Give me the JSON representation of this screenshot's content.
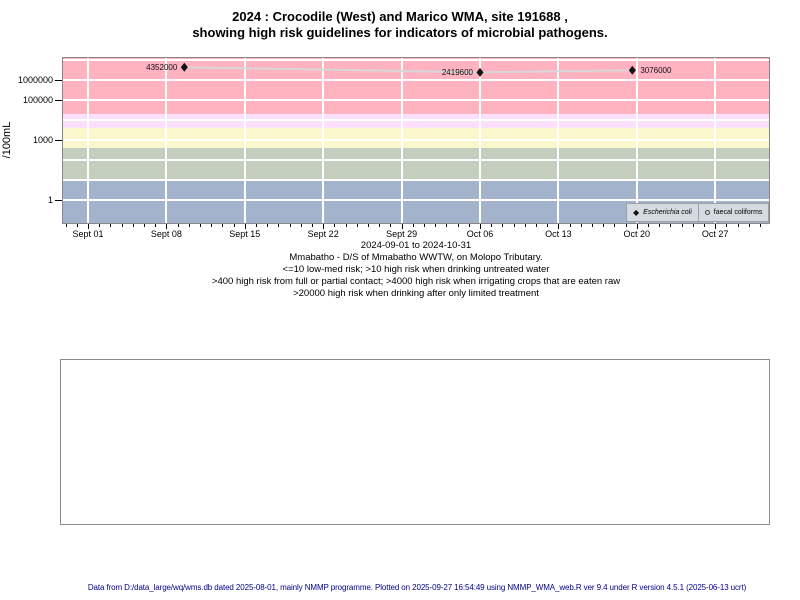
{
  "title": {
    "line1": "2024 : Crocodile (West) and Marico WMA, site 191688 ,",
    "line2": "showing high risk guidelines for indicators of microbial pathogens."
  },
  "chart_data": {
    "type": "scatter",
    "ylabel": "/100mL",
    "y_scale": "log10",
    "y_ticks": [
      1,
      1000,
      100000,
      1000000
    ],
    "y_tick_labels": [
      "1",
      "1000",
      "100000",
      "1000000"
    ],
    "y_gridline_decades": [
      0,
      1,
      2,
      3,
      4,
      5,
      6,
      7
    ],
    "x_tick_labels": [
      "Sept 01",
      "Sept 08",
      "Sept 15",
      "Sept 22",
      "Sept 29",
      "Oct 06",
      "Oct 13",
      "Oct 20",
      "Oct 27"
    ],
    "x_range_label": "2024-09-01 to 2024-10-31",
    "x_range": [
      "2024-09-01",
      "2024-10-31"
    ],
    "bands": [
      {
        "name": "low-med-risk",
        "from": null,
        "to": 10,
        "color": "#a3b3cc"
      },
      {
        "name": "high-risk-drinking-untreated",
        "from": 10,
        "to": 400,
        "color": "#c3cebf"
      },
      {
        "name": "high-risk-full-partial-contact",
        "from": 400,
        "to": 4000,
        "color": "#faf7cd"
      },
      {
        "name": "high-risk-irrigating-raw-crops",
        "from": 4000,
        "to": 20000,
        "color": "#fae0fa"
      },
      {
        "name": "high-risk-limited-treatment-drinking",
        "from": 20000,
        "to": null,
        "color": "#ffb2c0"
      }
    ],
    "series": [
      {
        "name": "Escherichia coli",
        "marker": "diamond-filled",
        "line_color": "#d7d7d7",
        "points": [
          {
            "date_approx": "2024-09-10",
            "day": 8.6,
            "value": 4352000,
            "label": "4352000",
            "label_side": "left"
          },
          {
            "date_approx": "2024-10-06",
            "day": 35.0,
            "value": 2419600,
            "label": "2419600",
            "label_side": "left"
          },
          {
            "date_approx": "2024-10-19",
            "day": 48.6,
            "value": 3076000,
            "label": "3076000",
            "label_side": "right"
          }
        ]
      },
      {
        "name": "faecal coliforms",
        "marker": "circle-open",
        "points": []
      }
    ],
    "legend": [
      {
        "label": "Escherichia coli",
        "marker": "diamond-filled"
      },
      {
        "label": "faecal coliforms",
        "marker": "circle-open"
      }
    ],
    "colors": {
      "gridline": "#ffffff",
      "plot_border": "#878787",
      "axis_tick": "#000000",
      "point": "#111111"
    }
  },
  "captions": {
    "lines": [
      "Mmabatho - D/S of Mmabatho WWTW, on Molopo Tributary.",
      "<=10 low-med risk; >10 high risk when drinking untreated water",
      ">400 high risk from full or partial contact; >4000 high risk when irrigating crops that are eaten raw",
      ">20000 high risk when drinking after only limited treatment"
    ]
  },
  "footer": {
    "text": "Data from D:/data_large/wq/wms.db dated 2025-08-01, mainly NMMP programme. Plotted on 2025-09-27 16:54:49 using NMMP_WMA_web.R ver 9.4 under R version 4.5.1 (2025-06-13 ucrt)"
  }
}
